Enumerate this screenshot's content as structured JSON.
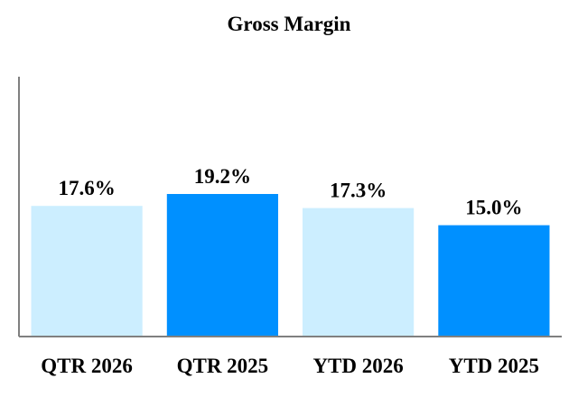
{
  "chart_data": {
    "type": "bar",
    "title": "Gross Margin",
    "categories": [
      "QTR 2026",
      "QTR 2025",
      "YTD 2026",
      "YTD 2025"
    ],
    "values": [
      17.6,
      19.2,
      17.3,
      15.0
    ],
    "value_labels": [
      "17.6%",
      "19.2%",
      "17.3%",
      "15.0%"
    ],
    "bar_colors": [
      "#cceeff",
      "#0090ff",
      "#cceeff",
      "#0090ff"
    ],
    "axis_color": "#808080",
    "xlabel": "",
    "ylabel": "",
    "ylim": [
      0,
      35
    ],
    "grid": false,
    "legend": "none"
  }
}
